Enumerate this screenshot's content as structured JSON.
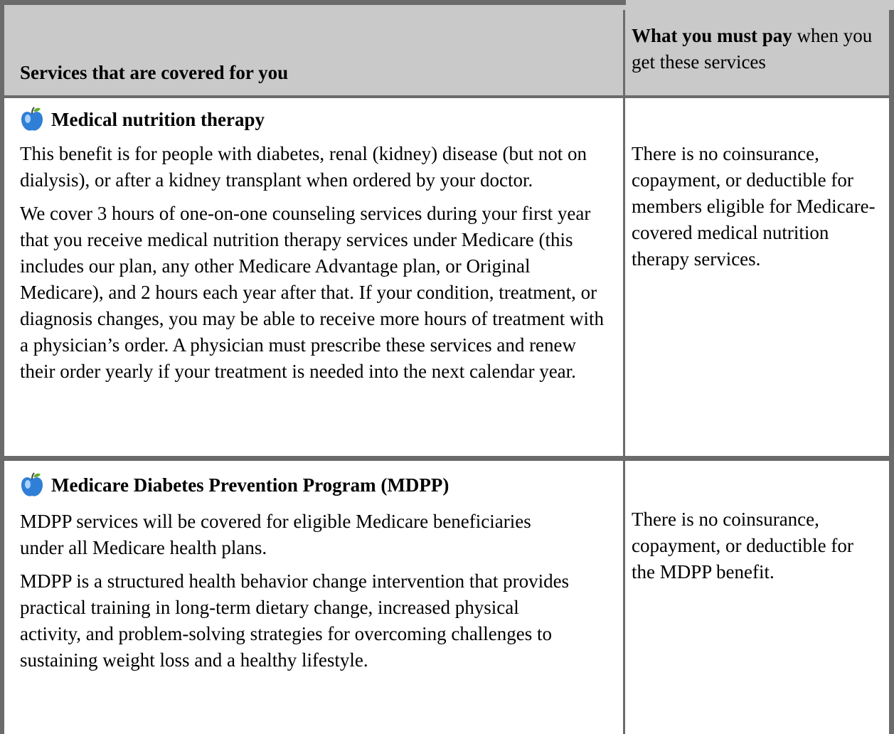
{
  "header": {
    "services": "Services that are covered for you",
    "pay_bold": "What you must pay",
    "pay_rest": "when you get these services"
  },
  "rows": [
    {
      "title": "Medical nutrition therapy",
      "paragraphs": [
        "This benefit is for people with diabetes, renal (kidney) disease (but not on dialysis), or after a kidney transplant when ordered by your doctor.",
        "We cover 3 hours of one-on-one counseling services during your first year that you receive medical nutrition therapy services under Medicare (this includes our plan, any other Medicare Advantage plan, or Original Medicare), and 2 hours each year after that. If your condition, treatment, or diagnosis changes, you may be able to receive more hours of treatment with a physician’s order. A physician must prescribe these services and renew their order yearly if your treatment is needed into the next calendar year."
      ],
      "pay": "There is no coinsurance, copayment, or deductible for members eligible for Medicare-covered medical nutrition therapy services."
    },
    {
      "title": "Medicare Diabetes Prevention Program (MDPP)",
      "paragraphs": [
        "MDPP services will be covered for eligible Medicare beneficiaries under all Medicare health plans.",
        "MDPP is a structured health behavior change intervention that provides practical training in long-term dietary change, increased physical activity, and problem-solving strategies for overcoming challenges to sustaining weight loss and a healthy lifestyle."
      ],
      "pay": "There is no coinsurance, copayment, or deductible for the MDPP benefit."
    }
  ]
}
